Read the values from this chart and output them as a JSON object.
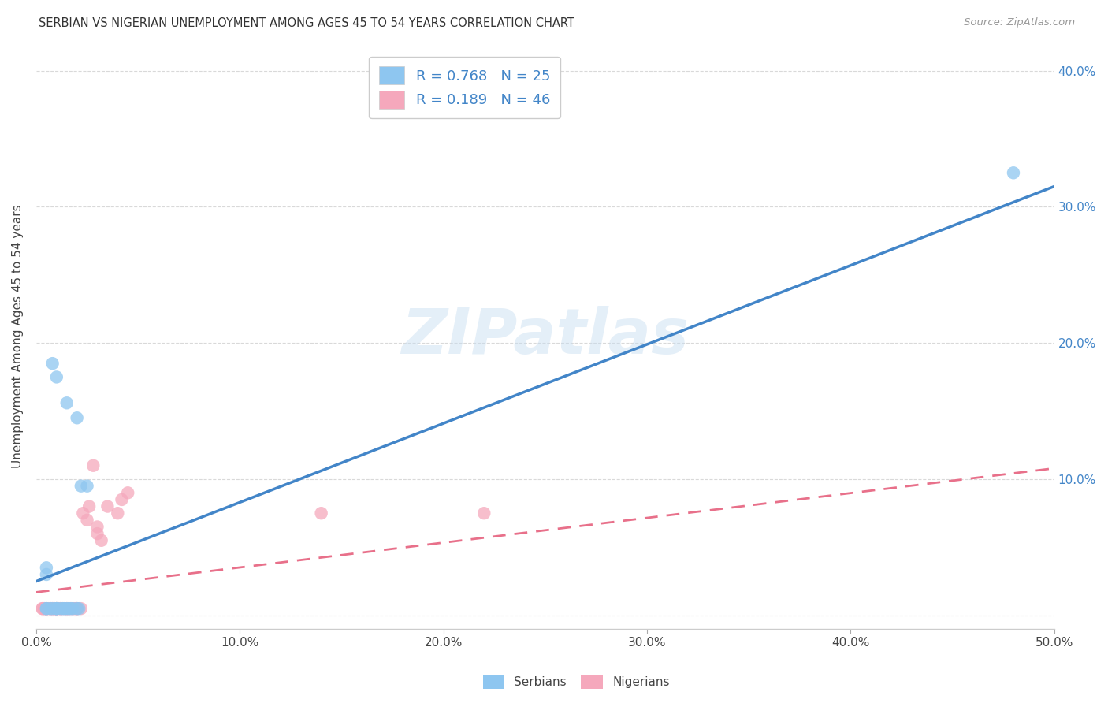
{
  "title": "SERBIAN VS NIGERIAN UNEMPLOYMENT AMONG AGES 45 TO 54 YEARS CORRELATION CHART",
  "source": "Source: ZipAtlas.com",
  "ylabel": "Unemployment Among Ages 45 to 54 years",
  "xlim": [
    0.0,
    0.5
  ],
  "ylim": [
    -0.01,
    0.42
  ],
  "xticks": [
    0.0,
    0.1,
    0.2,
    0.3,
    0.4,
    0.5
  ],
  "yticks": [
    0.0,
    0.1,
    0.2,
    0.3,
    0.4
  ],
  "background_color": "#ffffff",
  "grid_color": "#d0d0d0",
  "watermark": "ZIPatlas",
  "serbian_color": "#8ec6f0",
  "nigerian_color": "#f5a8bc",
  "serbian_line_color": "#4285c8",
  "nigerian_line_color": "#e8708a",
  "legend_R_serbian": "0.768",
  "legend_N_serbian": "25",
  "legend_R_nigerian": "0.189",
  "legend_N_nigerian": "46",
  "serbian_line_x0": 0.0,
  "serbian_line_y0": 0.025,
  "serbian_line_x1": 0.5,
  "serbian_line_y1": 0.315,
  "nigerian_line_x0": 0.0,
  "nigerian_line_y0": 0.017,
  "nigerian_line_x1": 0.5,
  "nigerian_line_y1": 0.108,
  "serbian_scatter_x": [
    0.005,
    0.005,
    0.007,
    0.008,
    0.008,
    0.01,
    0.01,
    0.01,
    0.01,
    0.012,
    0.013,
    0.014,
    0.015,
    0.015,
    0.016,
    0.017,
    0.018,
    0.02,
    0.02,
    0.021,
    0.022,
    0.025,
    0.48,
    0.005,
    0.005
  ],
  "serbian_scatter_y": [
    0.005,
    0.005,
    0.005,
    0.005,
    0.185,
    0.005,
    0.005,
    0.175,
    0.005,
    0.005,
    0.005,
    0.005,
    0.005,
    0.156,
    0.005,
    0.005,
    0.005,
    0.145,
    0.005,
    0.005,
    0.095,
    0.095,
    0.325,
    0.035,
    0.03
  ],
  "nigerian_scatter_x": [
    0.003,
    0.004,
    0.005,
    0.005,
    0.005,
    0.006,
    0.007,
    0.007,
    0.008,
    0.008,
    0.009,
    0.009,
    0.01,
    0.01,
    0.01,
    0.01,
    0.011,
    0.012,
    0.012,
    0.013,
    0.014,
    0.015,
    0.015,
    0.016,
    0.017,
    0.018,
    0.019,
    0.02,
    0.02,
    0.02,
    0.022,
    0.023,
    0.025,
    0.026,
    0.028,
    0.03,
    0.03,
    0.032,
    0.035,
    0.04,
    0.042,
    0.045,
    0.14,
    0.22,
    0.003,
    0.004
  ],
  "nigerian_scatter_y": [
    0.005,
    0.005,
    0.005,
    0.005,
    0.005,
    0.005,
    0.005,
    0.005,
    0.005,
    0.005,
    0.005,
    0.005,
    0.005,
    0.005,
    0.005,
    0.005,
    0.005,
    0.005,
    0.005,
    0.005,
    0.005,
    0.005,
    0.005,
    0.005,
    0.005,
    0.005,
    0.005,
    0.005,
    0.005,
    0.005,
    0.005,
    0.075,
    0.07,
    0.08,
    0.11,
    0.065,
    0.06,
    0.055,
    0.08,
    0.075,
    0.085,
    0.09,
    0.075,
    0.075,
    0.005,
    0.005
  ]
}
